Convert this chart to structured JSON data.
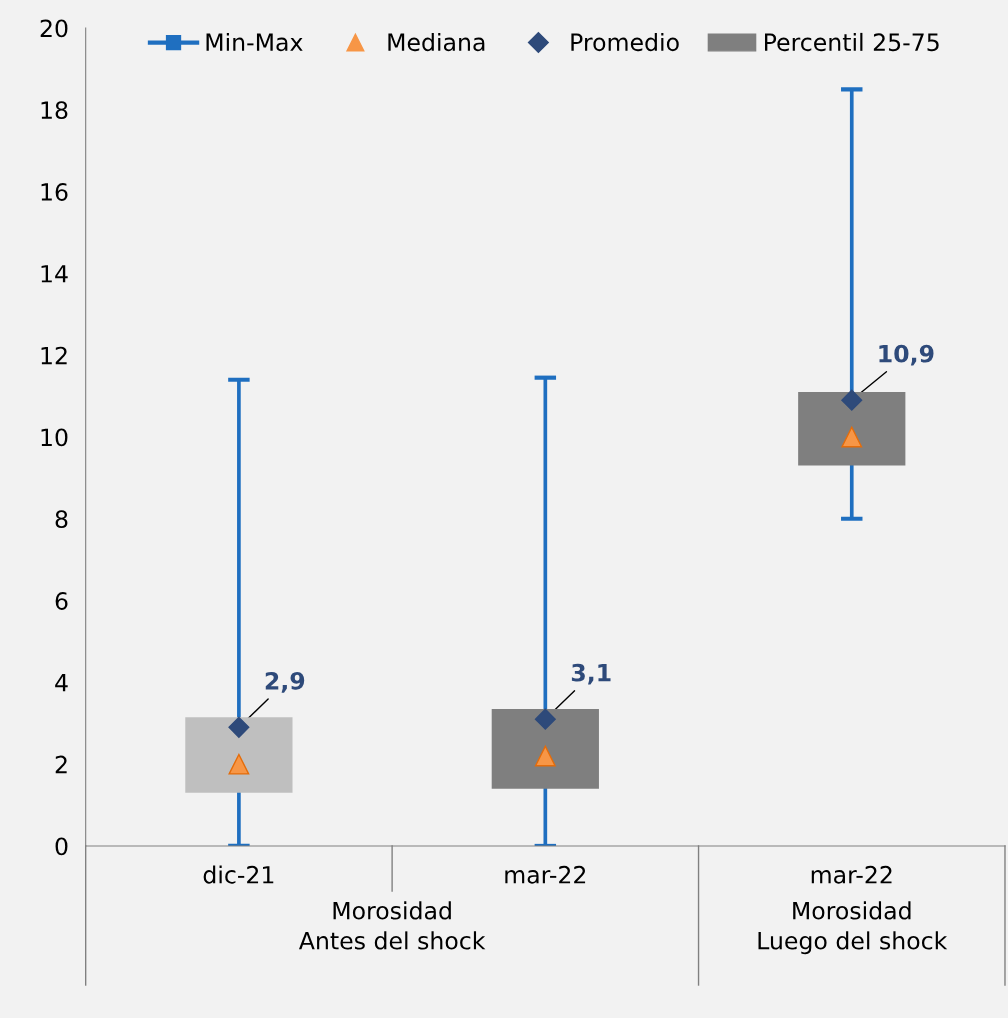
{
  "chart_data": {
    "type": "bar",
    "categories": [
      "dic-21",
      "mar-22",
      "mar-22"
    ],
    "series": [
      {
        "name": "Min-Max",
        "color": "#1f6fc0",
        "base": [
          0,
          0,
          8.0
        ],
        "values": [
          11.4,
          11.45,
          10.5
        ]
      },
      {
        "name": "Mediana",
        "type": "scatter",
        "marker": "triangle",
        "color": "#f79646",
        "values": [
          2.0,
          2.2,
          10.0
        ]
      },
      {
        "name": "Promedio",
        "type": "scatter",
        "marker": "diamond",
        "color": "#2e4a7a",
        "values": [
          2.9,
          3.1,
          10.9
        ],
        "value_labels": [
          "2,9",
          "3,1",
          "10,9"
        ]
      },
      {
        "name": "Percentil 25-75",
        "type": "bar",
        "colors": [
          "#bfbfbf",
          "#7f7f7f",
          "#7f7f7f"
        ],
        "base": [
          1.3,
          1.4,
          9.3
        ],
        "values": [
          1.85,
          1.95,
          1.8
        ]
      }
    ],
    "ylim": [
      0,
      20
    ],
    "yticks": [
      0,
      2,
      4,
      6,
      8,
      10,
      12,
      14,
      16,
      18,
      20
    ],
    "grid": false,
    "legend": "top",
    "annotations": [
      "Morosidad\nAntes del shock",
      "Morosidad\nLuego del shock"
    ]
  }
}
